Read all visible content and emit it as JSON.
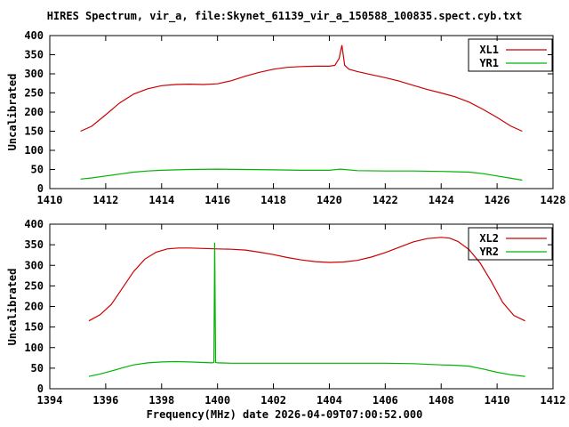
{
  "title": "HIRES Spectrum, vir_a, file:Skynet_61139_vir_a_150588_100835.spect.cyb.txt",
  "xlabel": "Frequency(MHz) date 2026-04-09T07:00:52.000",
  "colors": {
    "axis": "#000000",
    "background": "#ffffff",
    "red_series": "#cc0000",
    "green_series": "#00b400"
  },
  "chart_data": [
    {
      "type": "line",
      "ylabel": "Uncalibrated",
      "xlim": [
        1410,
        1428
      ],
      "ylim": [
        0,
        400
      ],
      "xtick_step": 2,
      "ytick_step": 50,
      "grid": false,
      "legend_position": "top-right",
      "series": [
        {
          "name": "XL1",
          "color": "#cc0000",
          "x": [
            1411.1,
            1411.5,
            1412,
            1412.5,
            1413,
            1413.5,
            1414,
            1414.5,
            1415,
            1415.5,
            1416,
            1416.5,
            1417,
            1417.5,
            1418,
            1418.5,
            1419,
            1419.5,
            1420,
            1420.2,
            1420.35,
            1420.45,
            1420.55,
            1420.7,
            1421,
            1421.5,
            1422,
            1422.5,
            1423,
            1423.5,
            1424,
            1424.5,
            1425,
            1425.5,
            1426,
            1426.5,
            1426.9
          ],
          "y": [
            150,
            163,
            193,
            224,
            247,
            261,
            269,
            272,
            273,
            272,
            274,
            282,
            294,
            304,
            312,
            317,
            319,
            320,
            320,
            322,
            340,
            375,
            322,
            312,
            306,
            298,
            290,
            281,
            270,
            259,
            250,
            240,
            226,
            207,
            186,
            163,
            150
          ]
        },
        {
          "name": "YR1",
          "color": "#00b400",
          "x": [
            1411.1,
            1411.5,
            1412,
            1412.5,
            1413,
            1413.5,
            1414,
            1415,
            1416,
            1417,
            1418,
            1419,
            1420,
            1420.4,
            1421,
            1422,
            1423,
            1424,
            1425,
            1425.5,
            1426,
            1426.5,
            1426.9
          ],
          "y": [
            25,
            28,
            33,
            38,
            43,
            46,
            48,
            50,
            51,
            50,
            49,
            48,
            48,
            51,
            47,
            46,
            46,
            45,
            43,
            39,
            33,
            27,
            22
          ]
        }
      ]
    },
    {
      "type": "line",
      "ylabel": "Uncalibrated",
      "xlim": [
        1394,
        1412
      ],
      "ylim": [
        0,
        400
      ],
      "xtick_step": 2,
      "ytick_step": 50,
      "grid": false,
      "legend_position": "top-right",
      "series": [
        {
          "name": "XL2",
          "color": "#cc0000",
          "x": [
            1395.4,
            1395.8,
            1396.2,
            1396.6,
            1397,
            1397.4,
            1397.8,
            1398.2,
            1398.6,
            1399,
            1399.5,
            1400,
            1400.5,
            1401,
            1401.5,
            1402,
            1402.5,
            1403,
            1403.5,
            1404,
            1404.5,
            1405,
            1405.5,
            1406,
            1406.5,
            1407,
            1407.5,
            1408,
            1408.3,
            1408.6,
            1409,
            1409.4,
            1409.8,
            1410.2,
            1410.6,
            1411
          ],
          "y": [
            165,
            180,
            205,
            245,
            285,
            315,
            332,
            340,
            342,
            342,
            341,
            340,
            339,
            337,
            332,
            326,
            319,
            313,
            309,
            307,
            308,
            312,
            320,
            331,
            344,
            357,
            365,
            368,
            366,
            358,
            338,
            305,
            260,
            210,
            178,
            165
          ]
        },
        {
          "name": "YR2",
          "color": "#00b400",
          "x": [
            1395.4,
            1395.8,
            1396.2,
            1396.6,
            1397,
            1397.5,
            1398,
            1398.5,
            1399,
            1399.4,
            1399.8,
            1399.87,
            1399.9,
            1399.93,
            1400,
            1400.5,
            1401,
            1402,
            1403,
            1404,
            1405,
            1406,
            1407,
            1408,
            1408.5,
            1409,
            1409.5,
            1410,
            1410.5,
            1411
          ],
          "y": [
            30,
            36,
            43,
            51,
            58,
            63,
            65,
            66,
            65,
            64,
            63,
            64,
            355,
            64,
            63,
            62,
            62,
            62,
            62,
            62,
            62,
            62,
            61,
            58,
            57,
            55,
            48,
            40,
            34,
            30
          ]
        }
      ]
    }
  ]
}
